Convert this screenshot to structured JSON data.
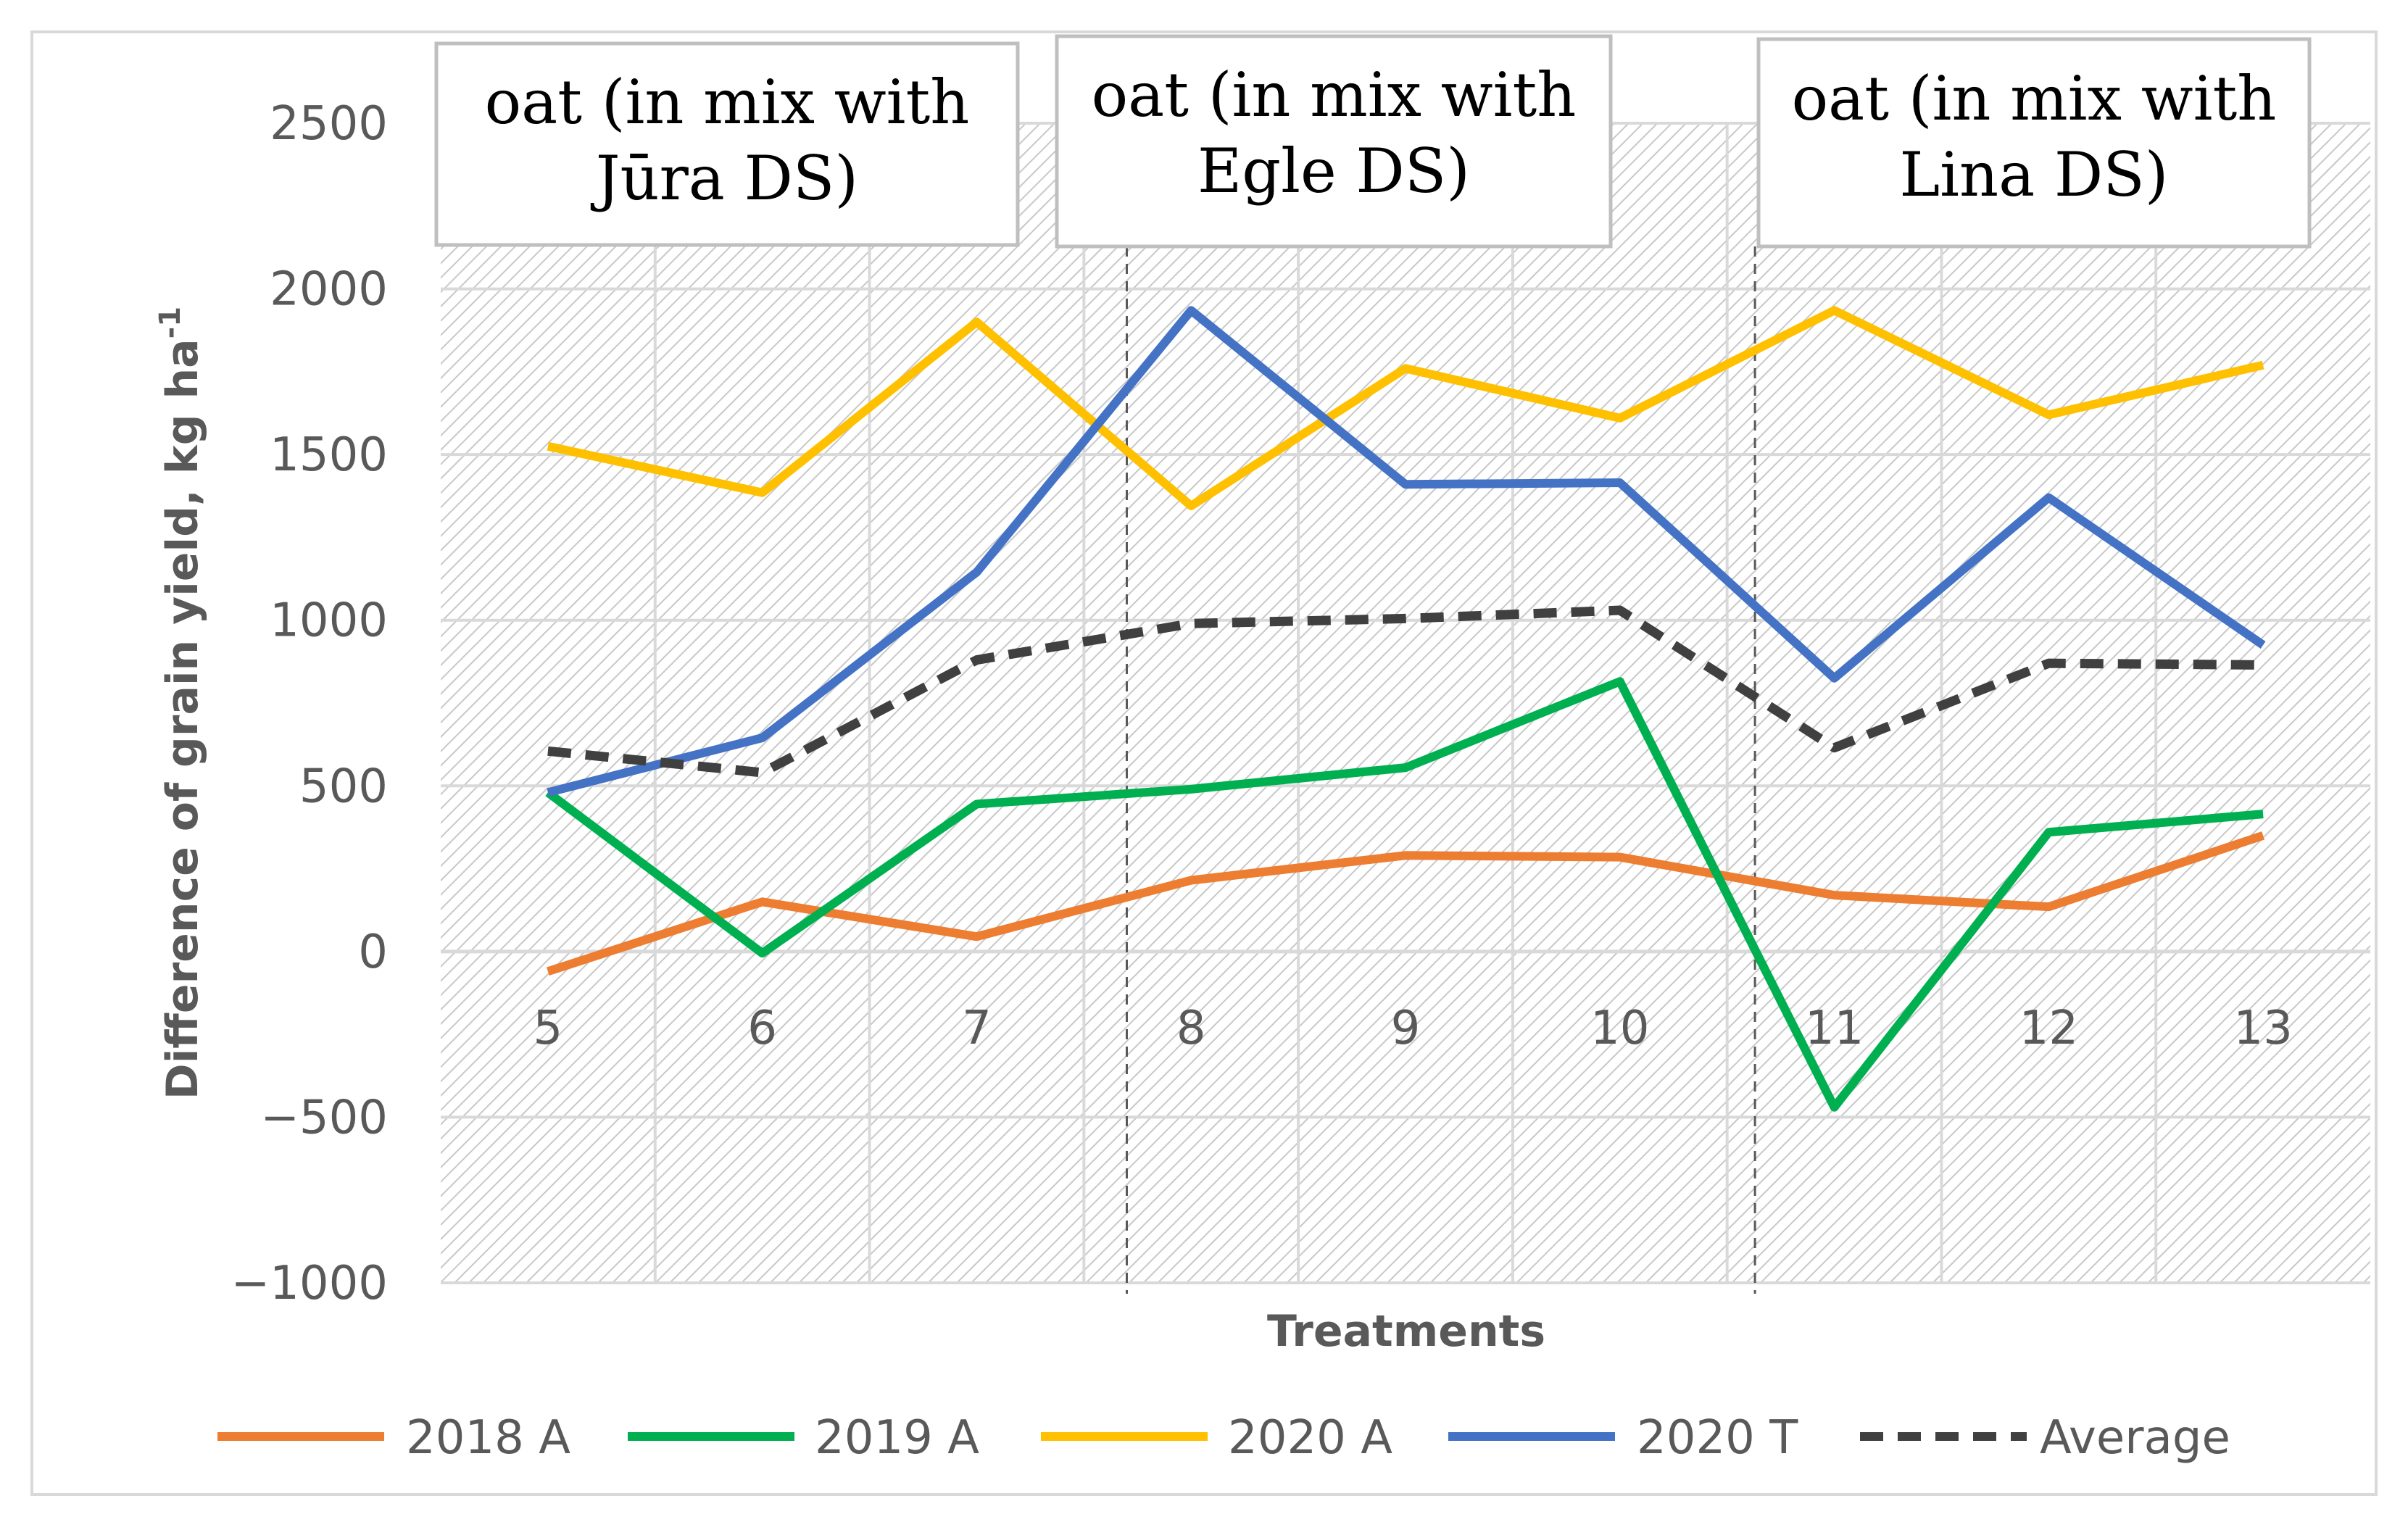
{
  "chart_data": {
    "type": "line",
    "title": "",
    "xlabel": "Treatments",
    "ylabel_main": "Difference of grain yield, kg ha",
    "ylabel_sup": "-1",
    "ylim": [
      -1000,
      2500
    ],
    "yticks": [
      -1000,
      -500,
      0,
      500,
      1000,
      1500,
      2000,
      2500
    ],
    "ytick_labels": [
      "−1000",
      "−500",
      "0",
      "500",
      "1000",
      "1500",
      "2000",
      "2500"
    ],
    "categories": [
      "5",
      "6",
      "7",
      "8",
      "9",
      "10",
      "11",
      "12",
      "13"
    ],
    "grid": true,
    "legend_position": "bottom",
    "series": [
      {
        "name": "2018 A",
        "color": "#ED7D31",
        "dashed": false,
        "values": [
          -60,
          150,
          45,
          215,
          290,
          285,
          170,
          135,
          350
        ]
      },
      {
        "name": "2019 A",
        "color": "#00B050",
        "dashed": false,
        "values": [
          480,
          -5,
          445,
          490,
          555,
          815,
          -470,
          360,
          415
        ]
      },
      {
        "name": "2020 A",
        "color": "#FFC000",
        "dashed": false,
        "values": [
          1525,
          1385,
          1900,
          1345,
          1760,
          1610,
          1935,
          1620,
          1770
        ]
      },
      {
        "name": "2020 T",
        "color": "#4472C4",
        "dashed": false,
        "values": [
          480,
          645,
          1145,
          1935,
          1410,
          1415,
          825,
          1370,
          925
        ]
      },
      {
        "name": "Average",
        "color": "#404040",
        "dashed": true,
        "values": [
          605,
          540,
          880,
          990,
          1005,
          1030,
          615,
          870,
          865
        ]
      }
    ],
    "annotations": [
      {
        "line1": "oat (in mix with",
        "line2": "Jūra DS)"
      },
      {
        "line1": "oat (in mix with",
        "line2": "Egle DS)"
      },
      {
        "line1": "oat (in mix with",
        "line2": "Lina DS)"
      }
    ]
  }
}
